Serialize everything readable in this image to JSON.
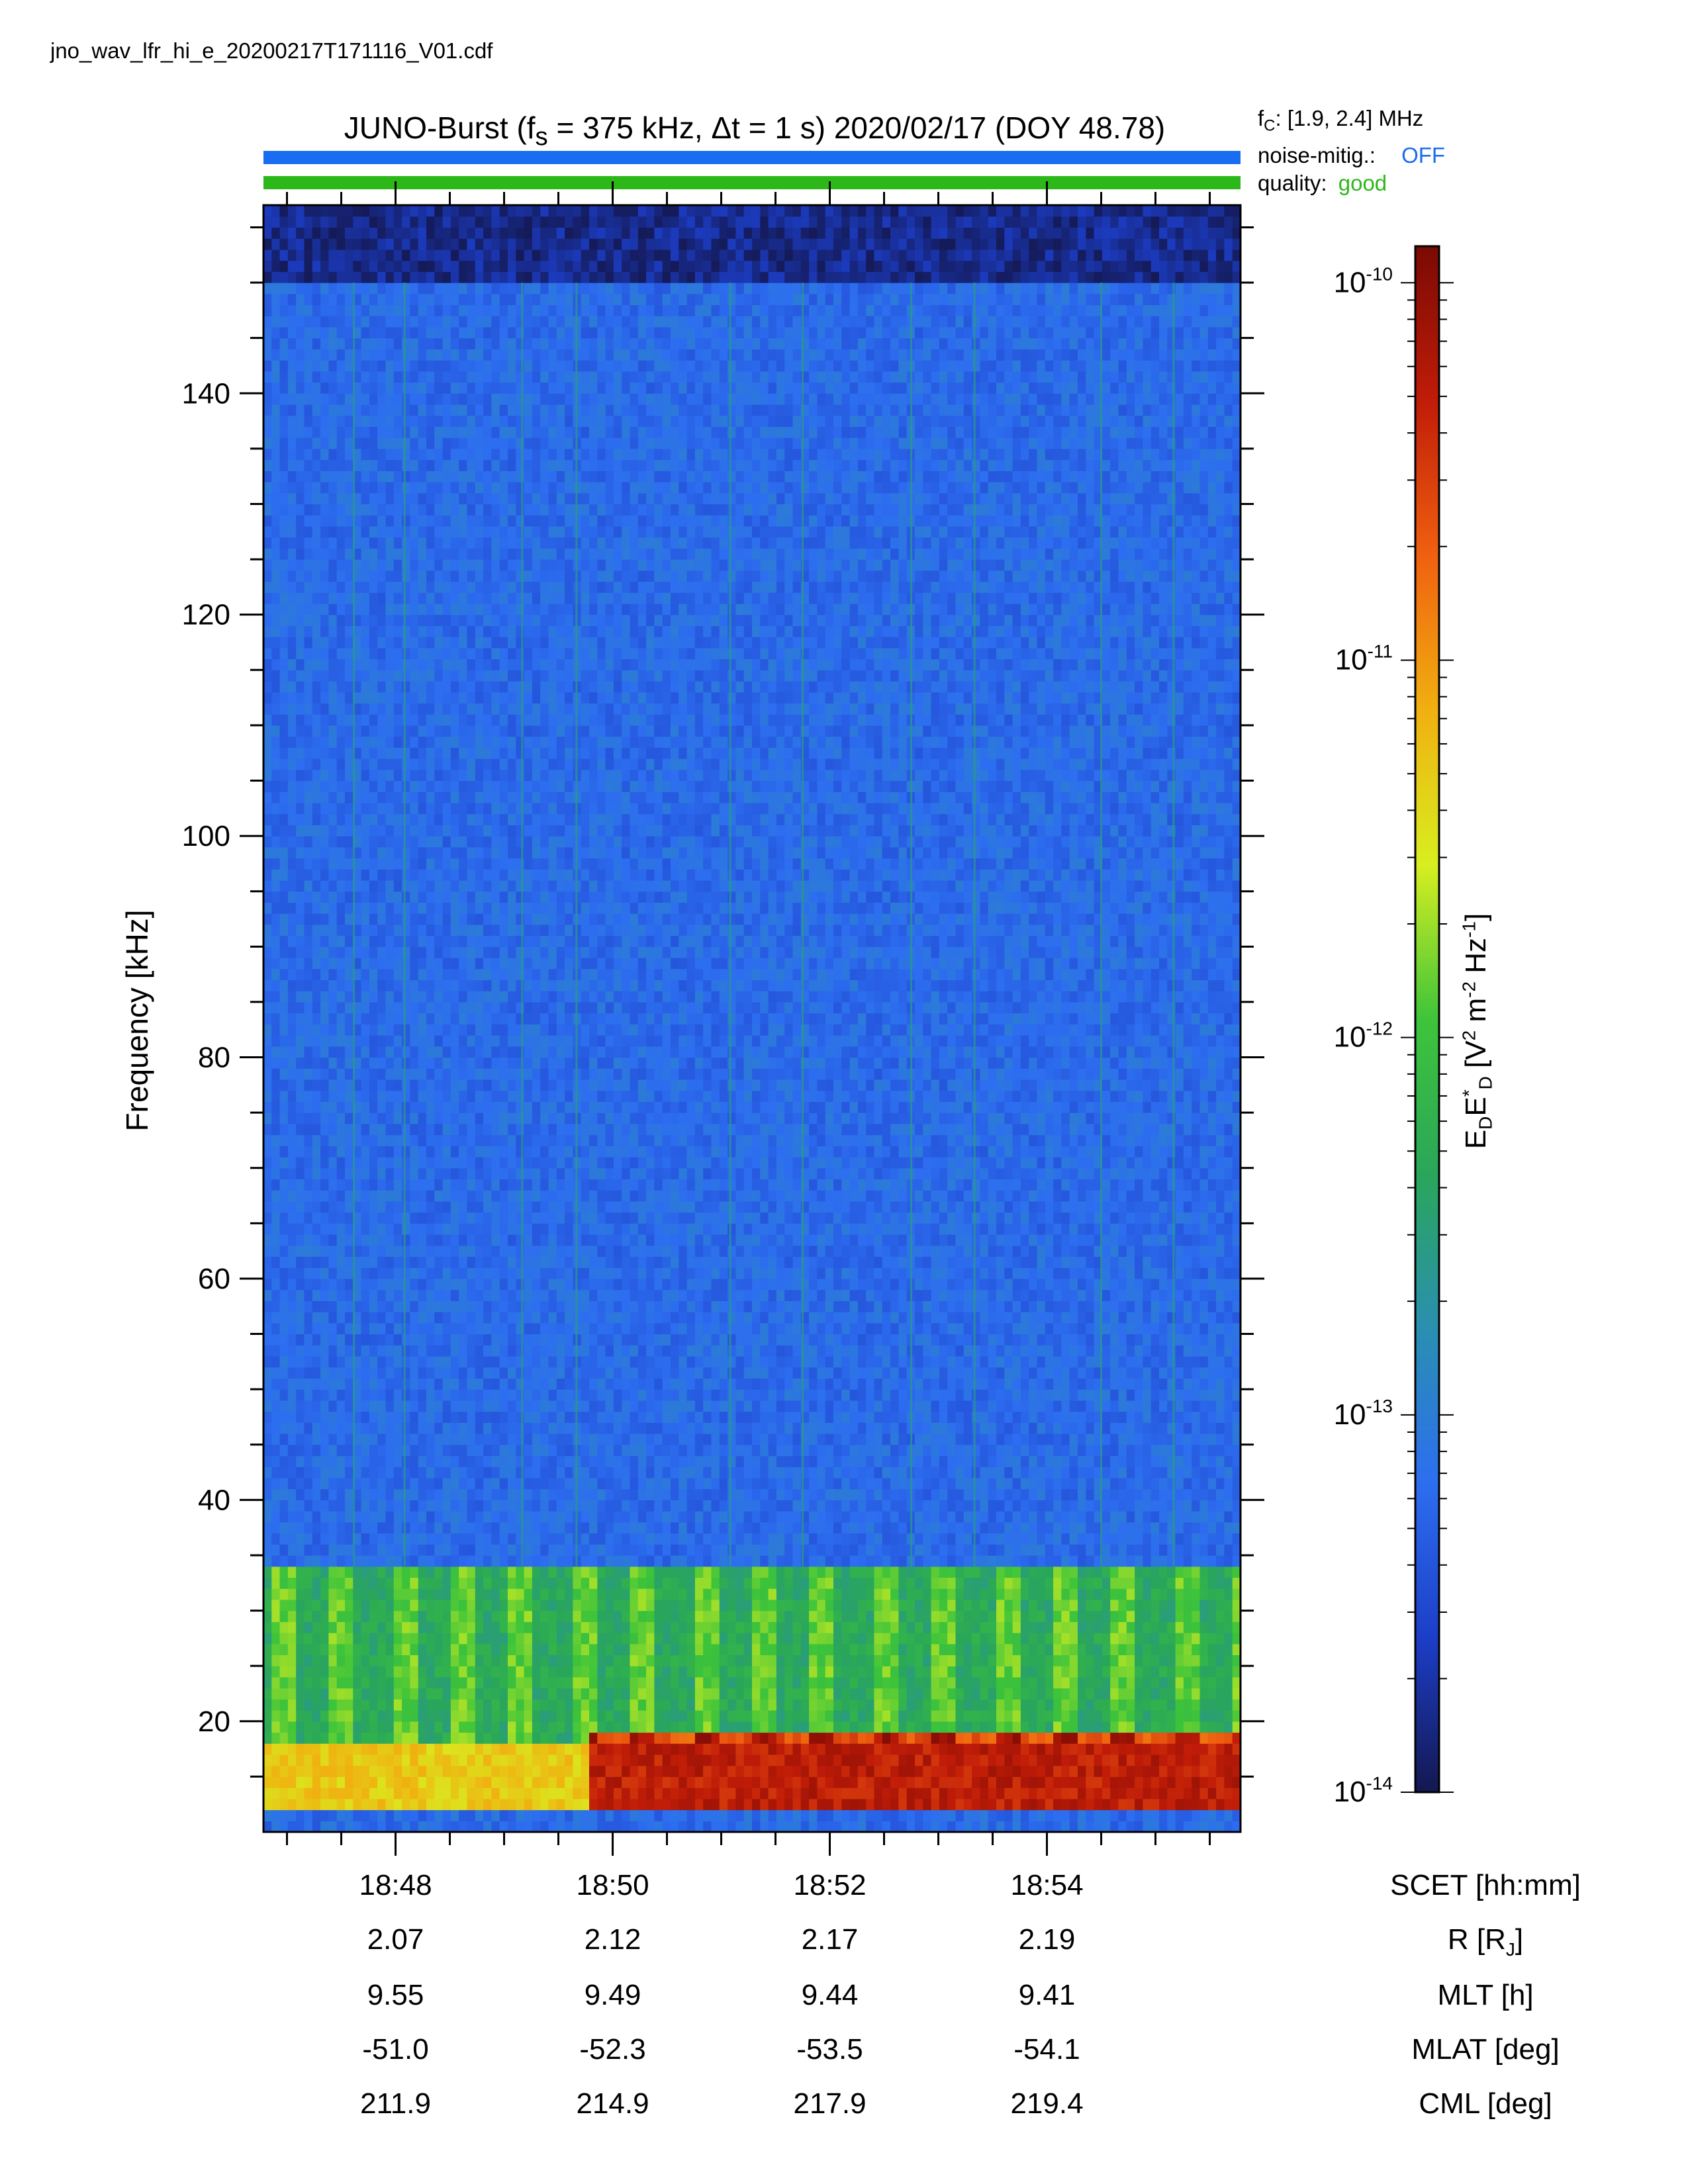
{
  "file": {
    "name": "jno_wav_lfr_hi_e_20200217T171116_V01.cdf"
  },
  "header": {
    "title_prefix": "JUNO-Burst (f",
    "title_fs_sub": "s",
    "title_mid": " = 375 kHz, Δt = 1 s)  2020/02/17 (DOY 48.78)",
    "fc_label": "f",
    "fc_sub": "C",
    "fc_value": ": [1.9, 2.4] MHz",
    "noise_label": "noise-mitig.:",
    "noise_value": "OFF",
    "quality_label": "quality:",
    "quality_value": "good"
  },
  "colors": {
    "noise_bar": "#1a6cf0",
    "quality_bar": "#2db81a",
    "noise_text": "#1a6cf0",
    "quality_text": "#2db81a",
    "frame": "#000000"
  },
  "chart_data": {
    "type": "heatmap",
    "title": "JUNO-Burst (fs = 375 kHz, Δt = 1 s)  2020/02/17 (DOY 48.78)",
    "ylabel": "Frequency [kHz]",
    "ylim": [
      10,
      157
    ],
    "yticks": [
      20,
      40,
      60,
      80,
      100,
      120,
      140
    ],
    "y_minor_step": 5,
    "xlabel": "SCET [hh:mm]",
    "xlim": [
      "18:46:47",
      "18:55:47"
    ],
    "xticks": [
      "18:48",
      "18:50",
      "18:52",
      "18:54"
    ],
    "colorbar": {
      "label_parts": [
        "E",
        "D",
        "E",
        "*",
        "D",
        " [V",
        "2",
        " m",
        "-2",
        " Hz",
        "-1",
        "]"
      ],
      "scale": "log",
      "range": [
        1e-14,
        1.25e-10
      ],
      "ticks": [
        {
          "base": "10",
          "exp": "-14",
          "value": 1e-14
        },
        {
          "base": "10",
          "exp": "-13",
          "value": 1e-13
        },
        {
          "base": "10",
          "exp": "-12",
          "value": 1e-12
        },
        {
          "base": "10",
          "exp": "-11",
          "value": 1e-11
        },
        {
          "base": "10",
          "exp": "-10",
          "value": 1e-10
        }
      ],
      "colormap": [
        "#141850",
        "#1c3ec8",
        "#2d6ef0",
        "#2a8fb0",
        "#2aa65a",
        "#3ec43a",
        "#d8ee20",
        "#f0b010",
        "#f06010",
        "#c01c08",
        "#7a0a04"
      ]
    },
    "bands": [
      {
        "name": "background",
        "f_min": 10,
        "f_max": 150,
        "level_log10": -13.2
      },
      {
        "name": "upper-noise-edge",
        "f_min": 150,
        "f_max": 157,
        "level_log10": -13.8
      },
      {
        "name": "mid-band-pulses",
        "f_min": 18,
        "f_max": 34,
        "level_log10": -12.0
      },
      {
        "name": "low-band-intense-early",
        "t_range": [
          "18:46:47",
          "18:49:45"
        ],
        "f_min": 12,
        "f_max": 18,
        "level_log10": -11.3
      },
      {
        "name": "low-band-intense-late",
        "t_range": [
          "18:49:45",
          "18:55:47"
        ],
        "f_min": 12,
        "f_max": 19,
        "level_log10": -10.3
      }
    ],
    "streak_times": [
      "18:47:37",
      "18:48:05",
      "18:49:10",
      "18:49:40",
      "18:51:05",
      "18:51:45",
      "18:52:45",
      "18:53:20",
      "18:54:30",
      "18:55:10"
    ],
    "ephemeris": {
      "rows": [
        {
          "label": "SCET [hh:mm]",
          "values": [
            "18:48",
            "18:50",
            "18:52",
            "18:54"
          ]
        },
        {
          "label": "R [R",
          "label_sub": "J",
          "label_tail": "]",
          "values": [
            "2.07",
            "2.12",
            "2.17",
            "2.19"
          ]
        },
        {
          "label": "MLT [h]",
          "values": [
            "9.55",
            "9.49",
            "9.44",
            "9.41"
          ]
        },
        {
          "label": "MLAT [deg]",
          "values": [
            "-51.0",
            "-52.3",
            "-53.5",
            "-54.1"
          ]
        },
        {
          "label": "CML [deg]",
          "values": [
            "211.9",
            "214.9",
            "217.9",
            "219.4"
          ]
        }
      ]
    }
  }
}
